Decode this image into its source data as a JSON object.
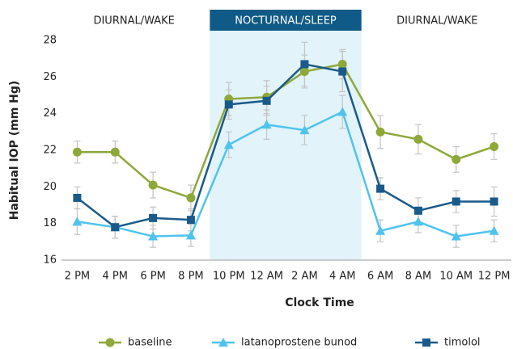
{
  "chart_data": {
    "type": "line",
    "periods": [
      {
        "label": "DIURNAL/WAKE",
        "shaded": false
      },
      {
        "label": "NOCTURNAL/SLEEP",
        "shaded": true
      },
      {
        "label": "DIURNAL/WAKE",
        "shaded": false
      }
    ],
    "x_label": "Clock Time",
    "y_label": "Habitual IOP (mm Hg)",
    "categories": [
      "2 PM",
      "4 PM",
      "6 PM",
      "8 PM",
      "10 PM",
      "12 AM",
      "2 AM",
      "4 AM",
      "6 AM",
      "8 AM",
      "10 AM",
      "12 PM"
    ],
    "series": [
      {
        "name": "baseline",
        "color": "#8ea83a",
        "marker": "circle",
        "values": [
          21.9,
          21.9,
          20.1,
          19.4,
          24.8,
          24.9,
          26.3,
          26.7,
          23.0,
          22.6,
          21.5,
          22.2
        ],
        "errors": [
          0.6,
          0.6,
          0.7,
          0.7,
          0.9,
          0.9,
          0.9,
          0.8,
          0.9,
          0.8,
          0.7,
          0.7
        ]
      },
      {
        "name": "latanoprostene bunod",
        "color": "#4fc3ef",
        "marker": "triangle",
        "values": [
          18.1,
          17.8,
          17.3,
          17.35,
          22.3,
          23.4,
          23.1,
          24.1,
          17.6,
          18.1,
          17.3,
          17.6
        ],
        "errors": [
          0.7,
          0.6,
          0.6,
          0.6,
          0.7,
          0.8,
          0.8,
          0.9,
          0.6,
          0.6,
          0.6,
          0.6
        ]
      },
      {
        "name": "timolol",
        "color": "#1a5a8a",
        "marker": "square",
        "values": [
          19.4,
          17.8,
          18.3,
          18.2,
          24.5,
          24.7,
          26.7,
          26.3,
          19.9,
          18.7,
          19.2,
          19.2
        ],
        "errors": [
          0.6,
          0.6,
          0.6,
          0.6,
          0.8,
          0.8,
          1.2,
          1.1,
          0.6,
          0.7,
          0.6,
          0.8
        ]
      }
    ],
    "ylim": [
      16,
      28
    ],
    "yticks": [
      16,
      18,
      20,
      22,
      24,
      26,
      28
    ],
    "grid": false,
    "shade_color": "#e2f3fa",
    "band_label_color": "#0f5a86",
    "error_color": "#c4c4c4",
    "legend": "bottom"
  }
}
